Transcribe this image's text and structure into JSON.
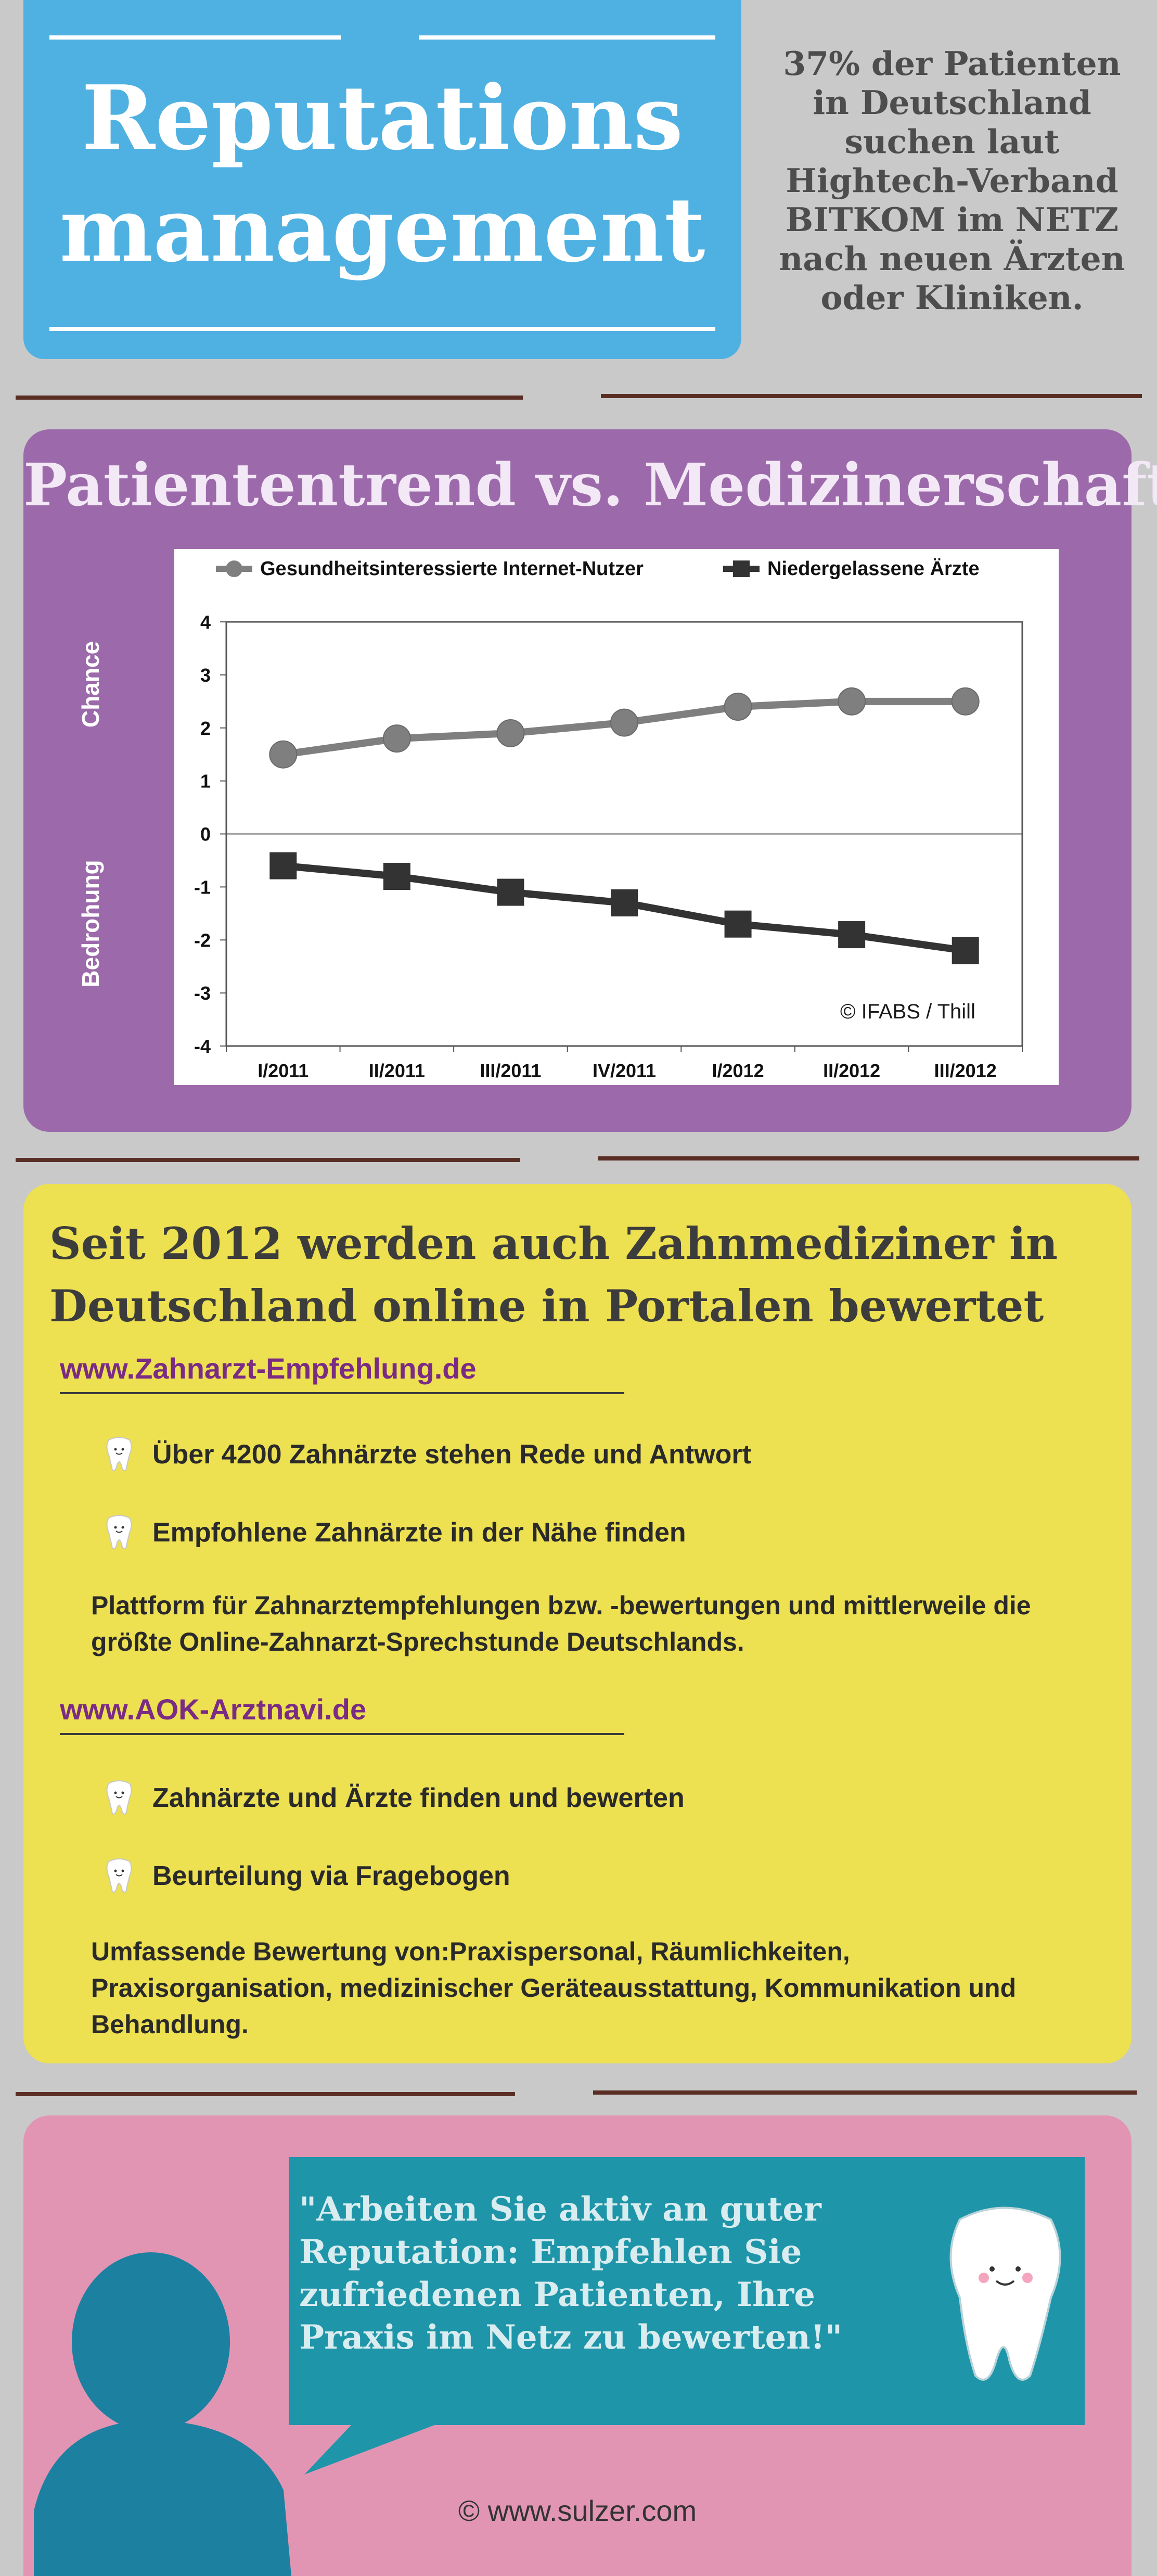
{
  "header": {
    "title": "Reputations\nmanagement",
    "stat": "37% der Patienten\nin Deutschland\nsuchen laut\nHightech-Verband\nBITKOM im NETZ\nnach neuen Ärzten\noder Kliniken."
  },
  "chart_section": {
    "title": "Patiententrend vs. Medizinerschaft",
    "side_label_top": "Chance",
    "side_label_bottom": "Bedrohung",
    "copyright": "© IFABS / Thill"
  },
  "chart_data": {
    "type": "line",
    "categories": [
      "I/2011",
      "II/2011",
      "III/2011",
      "IV/2011",
      "I/2012",
      "II/2012",
      "III/2012"
    ],
    "series": [
      {
        "name": "Gesundheitsinteressierte Internet-Nutzer",
        "values": [
          1.5,
          1.8,
          1.9,
          2.1,
          2.4,
          2.5,
          2.5
        ],
        "color": "#7f7f7f",
        "marker": "circle"
      },
      {
        "name": "Niedergelassene Ärzte",
        "values": [
          -0.6,
          -0.8,
          -1.1,
          -1.3,
          -1.7,
          -1.9,
          -2.2
        ],
        "color": "#333333",
        "marker": "square"
      }
    ],
    "yticks": [
      "4",
      "3",
      "2",
      "1",
      "0",
      "-1",
      "-2",
      "-3",
      "-4"
    ],
    "ylim": [
      -4,
      4
    ],
    "legend_position": "top",
    "grid": false
  },
  "portals": {
    "heading": "Seit 2012 werden auch Zahnmediziner in Deutschland online in Portalen bewertet",
    "items": [
      {
        "url": "www.Zahnarzt-Empfehlung.de",
        "bullets": [
          "Über 4200 Zahnärzte stehen Rede und Antwort",
          "Empfohlene Zahnärzte in der Nähe finden"
        ],
        "description": "Plattform für Zahnarztempfehlungen bzw. -bewertungen und mittlerweile die größte Online-Zahnarzt-Sprechstunde Deutschlands."
      },
      {
        "url": "www.AOK-Arztnavi.de",
        "bullets": [
          "Zahnärzte und Ärzte finden und bewerten",
          "Beurteilung via Fragebogen"
        ],
        "description": "Umfassende Bewertung von:Praxispersonal, Räumlichkeiten, Praxisorganisation, medizinischer Geräteausstattung, Kommunikation und Behandlung."
      }
    ]
  },
  "quote": {
    "text": "\"Arbeiten Sie aktiv an guter\nReputation: Empfehlen Sie\nzufriedenen Patienten, Ihre\nPraxis im Netz zu bewerten!\"",
    "credit": "© www.sulzer.com"
  },
  "colors": {
    "background": "#c9c9c9",
    "title_box": "#4fb1e2",
    "chart_section": "#9c6aaa",
    "portal_section": "#ede051",
    "quote_section": "#e295b2",
    "quote_bubble": "#1e95a9",
    "person_silhouette": "#1c80a0",
    "divider": "#5a2e24",
    "link": "#7a2b84"
  },
  "icons": {
    "bullet": "tooth-icon",
    "mascot": "smiling-tooth-icon",
    "person": "person-silhouette-icon"
  }
}
